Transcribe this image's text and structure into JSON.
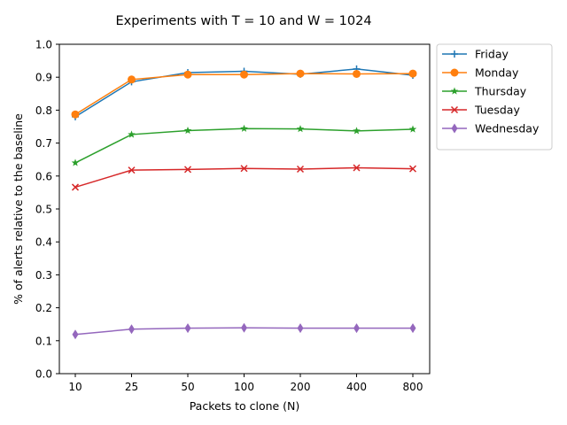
{
  "chart_data": {
    "type": "line",
    "title": "Experiments with T = 10 and  W = 1024",
    "xlabel": "Packets to clone (N)",
    "ylabel": "% of alerts relative to the baseline",
    "categories": [
      "10",
      "25",
      "50",
      "100",
      "200",
      "400",
      "800"
    ],
    "ylim": [
      0.0,
      1.0
    ],
    "yticks": [
      "0.0",
      "0.1",
      "0.2",
      "0.3",
      "0.4",
      "0.5",
      "0.6",
      "0.7",
      "0.8",
      "0.9",
      "1.0"
    ],
    "grid": false,
    "legend_position": "outside-top-right",
    "series": [
      {
        "name": "Friday",
        "color": "#1f77b4",
        "marker": "plus",
        "values": [
          0.78,
          0.886,
          0.914,
          0.918,
          0.909,
          0.925,
          0.906
        ]
      },
      {
        "name": "Monday",
        "color": "#ff7f0e",
        "marker": "circle",
        "values": [
          0.787,
          0.893,
          0.908,
          0.908,
          0.911,
          0.91,
          0.911
        ]
      },
      {
        "name": "Thursday",
        "color": "#2ca02c",
        "marker": "star",
        "values": [
          0.64,
          0.726,
          0.738,
          0.744,
          0.743,
          0.737,
          0.742
        ]
      },
      {
        "name": "Tuesday",
        "color": "#d62728",
        "marker": "x",
        "values": [
          0.566,
          0.618,
          0.62,
          0.623,
          0.621,
          0.625,
          0.622
        ]
      },
      {
        "name": "Wednesday",
        "color": "#9467bd",
        "marker": "diamond",
        "values": [
          0.119,
          0.135,
          0.138,
          0.139,
          0.138,
          0.138,
          0.138
        ]
      }
    ]
  }
}
